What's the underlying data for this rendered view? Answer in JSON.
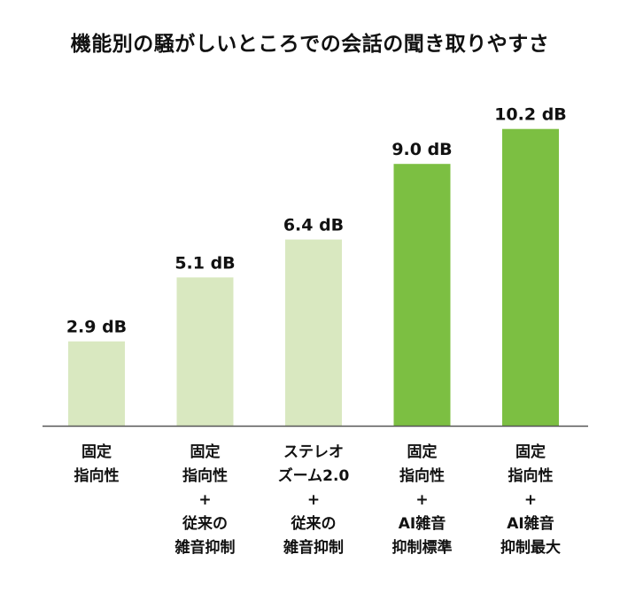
{
  "chart_data": {
    "type": "bar",
    "title": "機能別の騒がしいところでの会話の聞き取りやすさ",
    "xlabel": "",
    "ylabel": "",
    "unit": "dB",
    "ylim": [
      0,
      10.8
    ],
    "grid": false,
    "categories": [
      [
        "固定",
        "指向性"
      ],
      [
        "固定",
        "指向性",
        "+",
        "従来の",
        "雑音抑制"
      ],
      [
        "ステレオ",
        "ズーム2.0",
        "+",
        "従来の",
        "雑音抑制"
      ],
      [
        "固定",
        "指向性",
        "+",
        "AI雑音",
        "抑制標準"
      ],
      [
        "固定",
        "指向性",
        "+",
        "AI雑音",
        "抑制最大"
      ]
    ],
    "values": [
      2.9,
      5.1,
      6.4,
      9.0,
      10.2
    ],
    "data_labels": [
      "2.9 dB",
      "5.1 dB",
      "6.4 dB",
      "9.0 dB",
      "10.2 dB"
    ],
    "bar_colors": [
      "#d9e8c0",
      "#d9e8c0",
      "#d9e8c0",
      "#7cbf42",
      "#7cbf42"
    ],
    "axis_color": "#555555"
  }
}
